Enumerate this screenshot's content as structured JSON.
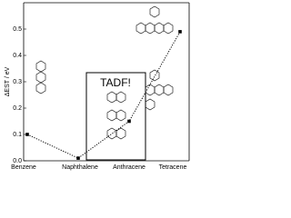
{
  "chart_data": {
    "type": "line",
    "y_label": "ΔEST / eV",
    "categories": [
      "Benzene",
      "Naphthalene",
      "Anthracene",
      "Tetracene"
    ],
    "values": [
      0.1,
      0.01,
      0.15,
      0.49
    ],
    "color": "#000000",
    "ylim": [
      0,
      0.6
    ],
    "yticks": [
      {
        "value": 0,
        "label": "0.0"
      },
      0.1,
      0.2,
      0.3,
      0.4,
      0.5
    ],
    "annotation": "TADF!"
  }
}
